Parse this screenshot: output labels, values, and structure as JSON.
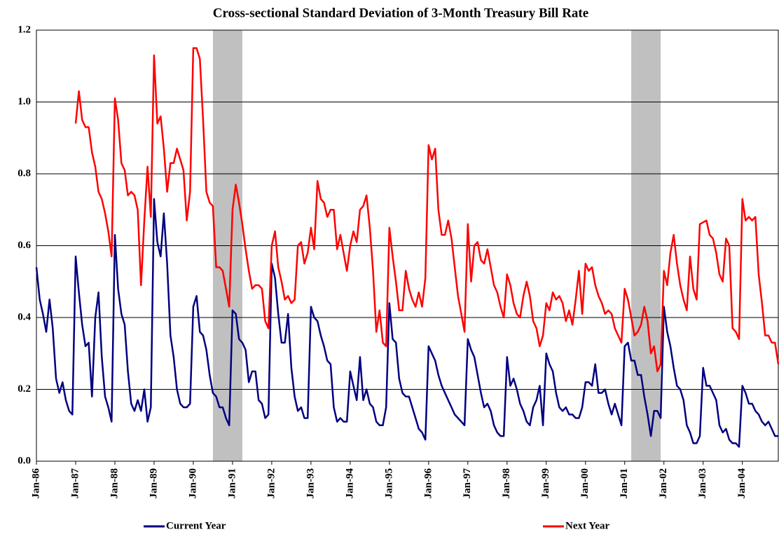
{
  "chart_data": {
    "type": "line",
    "title": "Cross-sectional Standard Deviation of 3-Month Treasury Bill Rate",
    "categories": [
      "Jan-86",
      null,
      null,
      null,
      null,
      null,
      null,
      null,
      null,
      null,
      null,
      null,
      "Jan-87",
      null,
      null,
      null,
      null,
      null,
      null,
      null,
      null,
      null,
      null,
      null,
      "Jan-88",
      null,
      null,
      null,
      null,
      null,
      null,
      null,
      null,
      null,
      null,
      null,
      "Jan-89",
      null,
      null,
      null,
      null,
      null,
      null,
      null,
      null,
      null,
      null,
      null,
      "Jan-90",
      null,
      null,
      null,
      null,
      null,
      null,
      null,
      null,
      null,
      null,
      null,
      "Jan-91",
      null,
      null,
      null,
      null,
      null,
      null,
      null,
      null,
      null,
      null,
      null,
      "Jan-92",
      null,
      null,
      null,
      null,
      null,
      null,
      null,
      null,
      null,
      null,
      null,
      "Jan-93",
      null,
      null,
      null,
      null,
      null,
      null,
      null,
      null,
      null,
      null,
      null,
      "Jan-94",
      null,
      null,
      null,
      null,
      null,
      null,
      null,
      null,
      null,
      null,
      null,
      "Jan-95",
      null,
      null,
      null,
      null,
      null,
      null,
      null,
      null,
      null,
      null,
      null,
      "Jan-96",
      null,
      null,
      null,
      null,
      null,
      null,
      null,
      null,
      null,
      null,
      null,
      "Jan-97",
      null,
      null,
      null,
      null,
      null,
      null,
      null,
      null,
      null,
      null,
      null,
      "Jan-98",
      null,
      null,
      null,
      null,
      null,
      null,
      null,
      null,
      null,
      null,
      null,
      "Jan-99",
      null,
      null,
      null,
      null,
      null,
      null,
      null,
      null,
      null,
      null,
      null,
      "Jan-00",
      null,
      null,
      null,
      null,
      null,
      null,
      null,
      null,
      null,
      null,
      null,
      "Jan-01",
      null,
      null,
      null,
      null,
      null,
      null,
      null,
      null,
      null,
      null,
      null,
      "Jan-02",
      null,
      null,
      null,
      null,
      null,
      null,
      null,
      null,
      null,
      null,
      null,
      "Jan-03",
      null,
      null,
      null,
      null,
      null,
      null,
      null,
      null,
      null,
      null,
      null,
      "Jan-04",
      null,
      null,
      null,
      null,
      null,
      null,
      null,
      null,
      null,
      null,
      null
    ],
    "series": [
      {
        "name": "Current Year",
        "color": "#000080",
        "values": [
          0.54,
          0.45,
          0.41,
          0.36,
          0.45,
          0.37,
          0.23,
          0.19,
          0.22,
          0.17,
          0.14,
          0.13,
          0.57,
          0.47,
          0.38,
          0.32,
          0.33,
          0.18,
          0.4,
          0.47,
          0.29,
          0.18,
          0.15,
          0.11,
          0.63,
          0.48,
          0.41,
          0.38,
          0.25,
          0.16,
          0.14,
          0.17,
          0.14,
          0.2,
          0.11,
          0.15,
          0.73,
          0.61,
          0.57,
          0.69,
          0.55,
          0.35,
          0.29,
          0.2,
          0.16,
          0.15,
          0.15,
          0.16,
          0.43,
          0.46,
          0.36,
          0.35,
          0.31,
          0.24,
          0.19,
          0.18,
          0.15,
          0.15,
          0.12,
          0.1,
          0.42,
          0.41,
          0.34,
          0.33,
          0.31,
          0.22,
          0.25,
          0.25,
          0.17,
          0.16,
          0.12,
          0.13,
          0.55,
          0.51,
          0.41,
          0.33,
          0.33,
          0.41,
          0.26,
          0.18,
          0.14,
          0.15,
          0.12,
          0.12,
          0.43,
          0.4,
          0.39,
          0.35,
          0.32,
          0.28,
          0.27,
          0.15,
          0.11,
          0.12,
          0.11,
          0.11,
          0.25,
          0.21,
          0.17,
          0.29,
          0.17,
          0.2,
          0.16,
          0.15,
          0.11,
          0.1,
          0.1,
          0.15,
          0.44,
          0.34,
          0.33,
          0.23,
          0.19,
          0.18,
          0.18,
          0.15,
          0.12,
          0.09,
          0.08,
          0.06,
          0.32,
          0.3,
          0.28,
          0.24,
          0.21,
          0.19,
          0.17,
          0.15,
          0.13,
          0.12,
          0.11,
          0.1,
          0.34,
          0.31,
          0.29,
          0.24,
          0.19,
          0.15,
          0.16,
          0.14,
          0.1,
          0.08,
          0.07,
          0.07,
          0.29,
          0.21,
          0.23,
          0.2,
          0.16,
          0.14,
          0.11,
          0.1,
          0.15,
          0.17,
          0.21,
          0.1,
          0.3,
          0.27,
          0.25,
          0.19,
          0.15,
          0.14,
          0.15,
          0.13,
          0.13,
          0.12,
          0.12,
          0.15,
          0.22,
          0.22,
          0.21,
          0.27,
          0.19,
          0.19,
          0.2,
          0.16,
          0.13,
          0.16,
          0.13,
          0.1,
          0.32,
          0.33,
          0.28,
          0.28,
          0.24,
          0.24,
          0.18,
          0.13,
          0.07,
          0.14,
          0.14,
          0.12,
          0.43,
          0.36,
          0.32,
          0.26,
          0.21,
          0.2,
          0.17,
          0.1,
          0.08,
          0.05,
          0.05,
          0.07,
          0.26,
          0.21,
          0.21,
          0.19,
          0.17,
          0.1,
          0.08,
          0.09,
          0.06,
          0.05,
          0.05,
          0.04,
          0.21,
          0.19,
          0.16,
          0.16,
          0.14,
          0.13,
          0.11,
          0.1,
          0.11,
          0.09,
          0.07,
          0.07
        ]
      },
      {
        "name": "Next Year",
        "color": "#ff0000",
        "values": [
          null,
          null,
          null,
          null,
          null,
          null,
          null,
          null,
          null,
          null,
          null,
          null,
          0.94,
          1.03,
          0.95,
          0.93,
          0.93,
          0.86,
          0.82,
          0.75,
          0.73,
          0.69,
          0.64,
          0.57,
          1.01,
          0.95,
          0.83,
          0.81,
          0.74,
          0.75,
          0.74,
          0.7,
          0.49,
          0.67,
          0.82,
          0.68,
          1.13,
          0.94,
          0.96,
          0.87,
          0.75,
          0.83,
          0.83,
          0.87,
          0.84,
          0.81,
          0.67,
          0.75,
          1.15,
          1.15,
          1.12,
          0.95,
          0.75,
          0.72,
          0.71,
          0.54,
          0.54,
          0.53,
          0.48,
          0.43,
          0.7,
          0.77,
          0.72,
          0.66,
          0.59,
          0.53,
          0.48,
          0.49,
          0.49,
          0.48,
          0.39,
          0.37,
          0.6,
          0.64,
          0.54,
          0.5,
          0.45,
          0.46,
          0.44,
          0.45,
          0.6,
          0.61,
          0.55,
          0.58,
          0.65,
          0.59,
          0.78,
          0.73,
          0.72,
          0.68,
          0.7,
          0.7,
          0.59,
          0.63,
          0.58,
          0.53,
          0.6,
          0.64,
          0.61,
          0.7,
          0.71,
          0.74,
          0.65,
          0.53,
          0.36,
          0.42,
          0.33,
          0.32,
          0.65,
          0.57,
          0.5,
          0.42,
          0.42,
          0.53,
          0.48,
          0.45,
          0.43,
          0.47,
          0.43,
          0.51,
          0.88,
          0.84,
          0.87,
          0.7,
          0.63,
          0.63,
          0.67,
          0.62,
          0.54,
          0.46,
          0.41,
          0.36,
          0.66,
          0.5,
          0.6,
          0.61,
          0.56,
          0.55,
          0.59,
          0.54,
          0.49,
          0.47,
          0.43,
          0.4,
          0.52,
          0.49,
          0.44,
          0.41,
          0.4,
          0.46,
          0.5,
          0.46,
          0.39,
          0.37,
          0.32,
          0.35,
          0.44,
          0.42,
          0.47,
          0.45,
          0.46,
          0.44,
          0.39,
          0.42,
          0.38,
          0.45,
          0.53,
          0.41,
          0.55,
          0.53,
          0.54,
          0.49,
          0.46,
          0.44,
          0.41,
          0.42,
          0.41,
          0.37,
          0.35,
          0.33,
          0.48,
          0.45,
          0.4,
          0.35,
          0.36,
          0.38,
          0.43,
          0.39,
          0.3,
          0.32,
          0.25,
          0.27,
          0.53,
          0.49,
          0.58,
          0.63,
          0.55,
          0.49,
          0.45,
          0.42,
          0.57,
          0.48,
          0.45,
          0.66,
          0.665,
          0.67,
          0.63,
          0.62,
          0.58,
          0.52,
          0.5,
          0.62,
          0.6,
          0.37,
          0.36,
          0.34,
          0.73,
          0.67,
          0.68,
          0.67,
          0.68,
          0.52,
          0.44,
          0.35,
          0.35,
          0.33,
          0.33,
          0.27
        ]
      }
    ],
    "shaded_ranges": [
      [
        54,
        63
      ],
      [
        182,
        191
      ]
    ],
    "shade_color": "#c0c0c0",
    "ylim": [
      0,
      1.2
    ],
    "yticks": [
      {
        "value": 0,
        "label": "0.0"
      },
      0.2,
      0.4,
      0.6,
      0.8,
      {
        "value": 1,
        "label": "1.0"
      },
      1.2
    ],
    "grid": true,
    "legend": "bottom"
  }
}
